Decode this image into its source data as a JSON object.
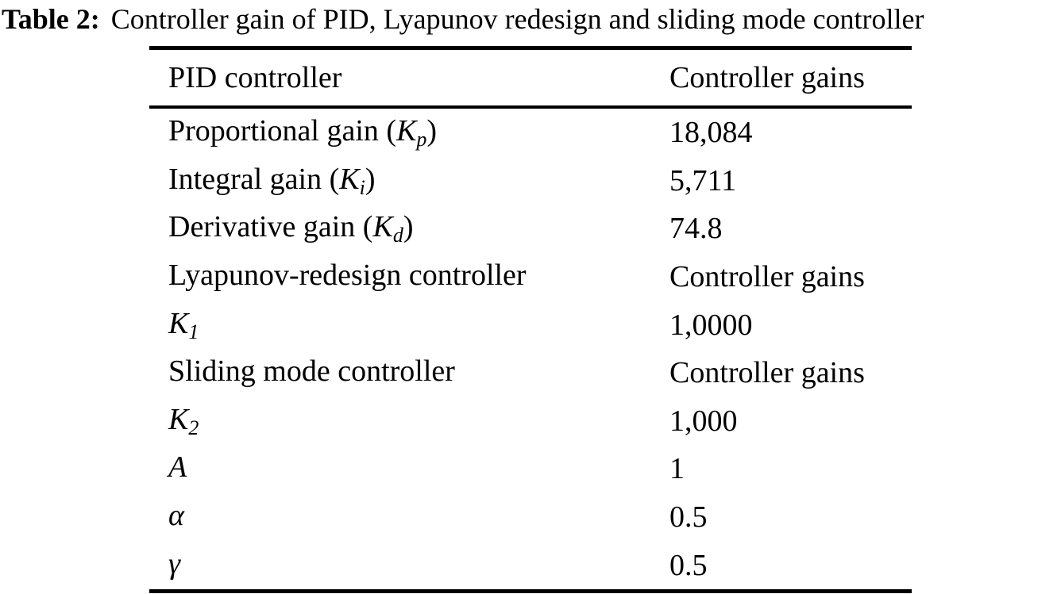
{
  "caption": {
    "label": "Table 2:",
    "text": "Controller gain of PID, Lyapunov redesign and sliding mode controller"
  },
  "table": {
    "header": {
      "col1": "PID controller",
      "col2": "Controller gains"
    },
    "rows": [
      {
        "prefix": "Proportional gain (",
        "symbol": "K",
        "sub": "p",
        "suffix": ")",
        "value": "18,084"
      },
      {
        "prefix": "Integral gain (",
        "symbol": "K",
        "sub": "i",
        "suffix": ")",
        "value": "5,711"
      },
      {
        "prefix": "Derivative gain (",
        "symbol": "K",
        "sub": "d",
        "suffix": ")",
        "value": "74.8"
      },
      {
        "prefix": "Lyapunov-redesign controller",
        "symbol": "",
        "sub": "",
        "suffix": "",
        "value": "Controller gains"
      },
      {
        "prefix": "",
        "symbol": "K",
        "sub": "1",
        "suffix": "",
        "value": "1,0000"
      },
      {
        "prefix": "Sliding mode controller",
        "symbol": "",
        "sub": "",
        "suffix": "",
        "value": "Controller gains"
      },
      {
        "prefix": "",
        "symbol": "K",
        "sub": "2",
        "suffix": "",
        "value": "1,000"
      },
      {
        "prefix": "",
        "symbol": "A",
        "sub": "",
        "suffix": "",
        "value": "1"
      },
      {
        "prefix": "",
        "symbol": "α",
        "sub": "",
        "suffix": "",
        "value": "0.5"
      },
      {
        "prefix": "",
        "symbol": "γ",
        "sub": "",
        "suffix": "",
        "value": "0.5"
      }
    ]
  }
}
